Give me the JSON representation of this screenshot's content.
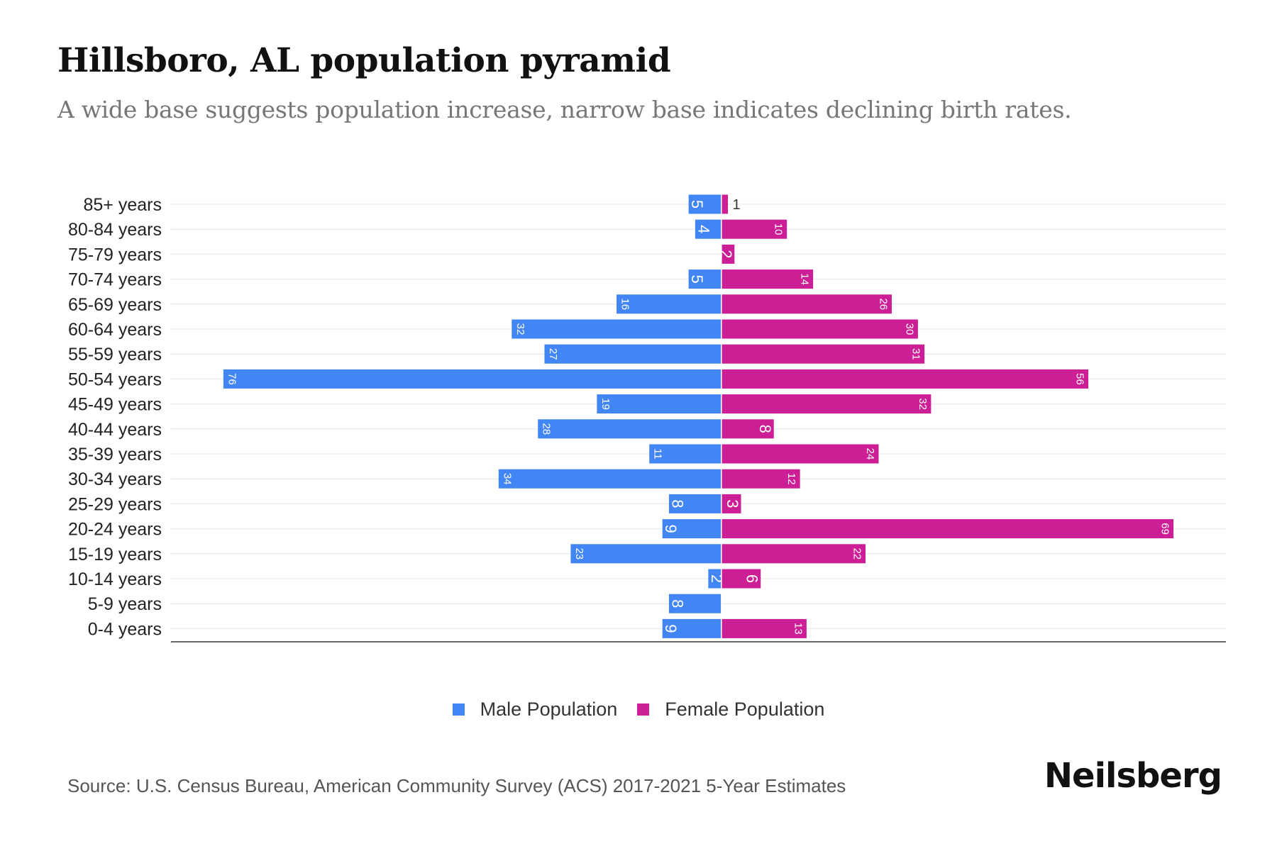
{
  "title": "Hillsboro, AL population pyramid",
  "subtitle": "A wide base suggests population increase, narrow base indicates declining birth rates.",
  "legend": {
    "male_label": "Male Population",
    "female_label": "Female Population"
  },
  "source": "Source: U.S. Census Bureau, American Community Survey (ACS) 2017-2021 5-Year Estimates",
  "brand": "Neilsberg",
  "colors": {
    "male": "#4285f4",
    "female": "#cc1f96",
    "grid": "#e6e6e6",
    "axis": "#333333"
  },
  "chart_data": {
    "type": "bar",
    "orientation": "horizontal-diverging",
    "title": "Hillsboro, AL population pyramid",
    "categories": [
      "85+ years",
      "80-84 years",
      "75-79 years",
      "70-74 years",
      "65-69 years",
      "60-64 years",
      "55-59 years",
      "50-54 years",
      "45-49 years",
      "40-44 years",
      "35-39 years",
      "30-34 years",
      "25-29 years",
      "20-24 years",
      "15-19 years",
      "10-14 years",
      "5-9 years",
      "0-4 years"
    ],
    "series": [
      {
        "name": "Male Population",
        "values": [
          5,
          4,
          0,
          5,
          16,
          32,
          27,
          76,
          19,
          28,
          11,
          34,
          8,
          9,
          23,
          2,
          8,
          9
        ]
      },
      {
        "name": "Female Population",
        "values": [
          1,
          10,
          2,
          14,
          26,
          30,
          31,
          56,
          32,
          8,
          24,
          12,
          3,
          69,
          22,
          6,
          0,
          13
        ]
      }
    ],
    "xlim": [
      -84,
      77
    ],
    "grid": true,
    "legend": "bottom-center"
  }
}
